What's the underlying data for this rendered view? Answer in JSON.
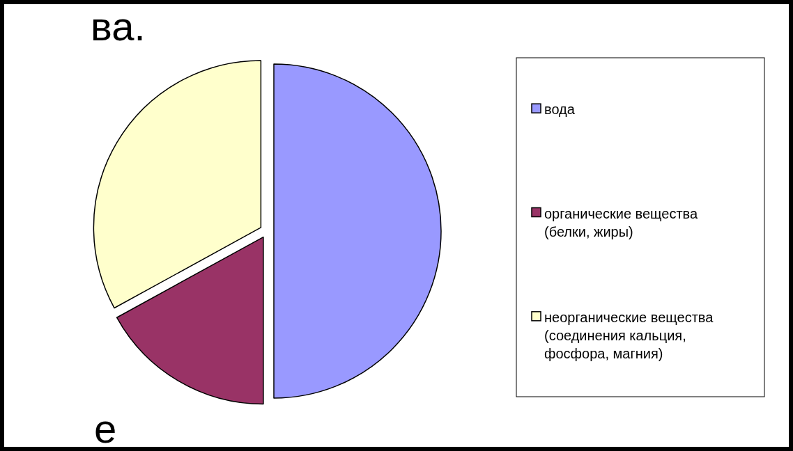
{
  "chart_data": {
    "type": "pie",
    "categories": [
      "вода",
      "органические вещества (белки, жиры)",
      "неорганические вещества (соединения кальция, фосфора, магния)"
    ],
    "values": [
      50,
      17,
      33
    ],
    "colors": [
      "#9999ff",
      "#993366",
      "#ffffcc"
    ],
    "legend": "right",
    "annotations": [
      "ва.",
      "е"
    ]
  }
}
